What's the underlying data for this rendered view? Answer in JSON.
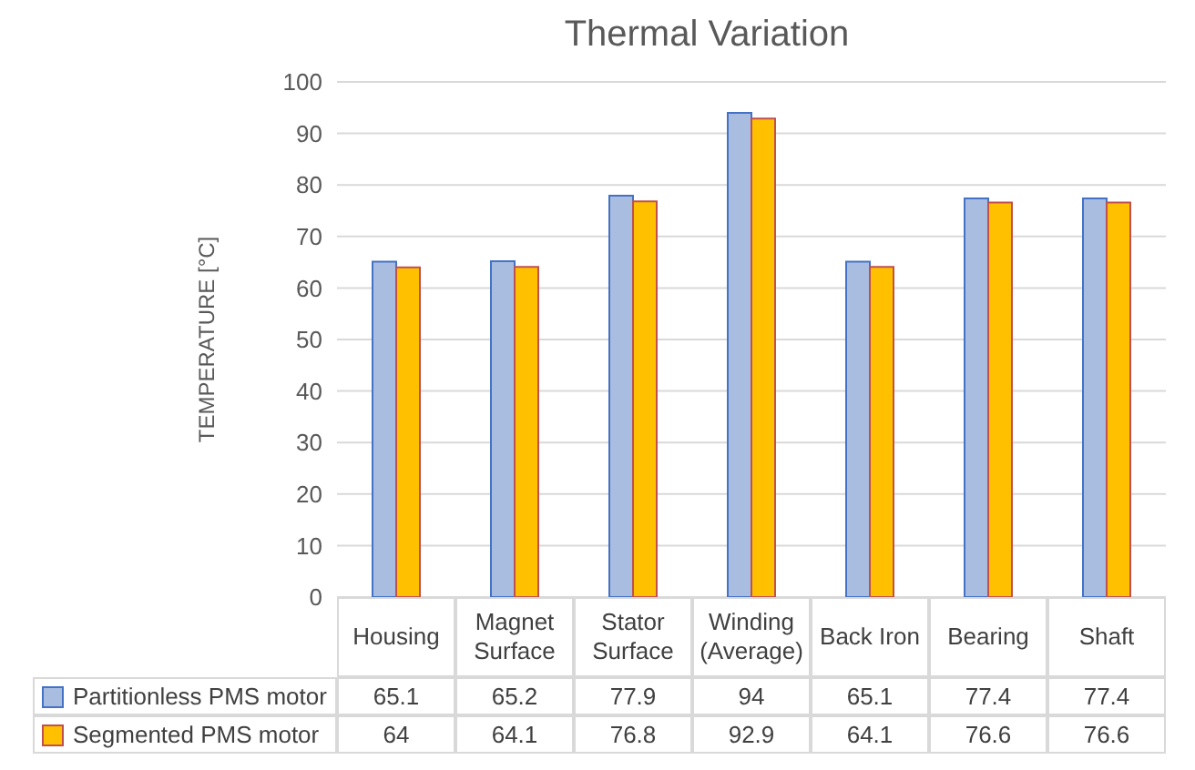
{
  "chart_data": {
    "type": "bar",
    "title": "Thermal Variation",
    "ylabel": "TEMPERATURE [°C]",
    "categories": [
      "Housing",
      "Magnet Surface",
      "Stator Surface",
      "Winding (Average)",
      "Back Iron",
      "Bearing",
      "Shaft"
    ],
    "series": [
      {
        "name": "Partitionless PMS motor",
        "color": "#a9bde0",
        "values": [
          65.1,
          65.2,
          77.9,
          94,
          65.1,
          77.4,
          77.4
        ]
      },
      {
        "name": "Segmented PMS motor",
        "color": "#ffc000",
        "values": [
          64,
          64.1,
          76.8,
          92.9,
          64.1,
          76.6,
          76.6
        ]
      }
    ],
    "ylim": [
      0,
      100
    ],
    "yticks": [
      0,
      10,
      20,
      30,
      40,
      50,
      60,
      70,
      80,
      90,
      100
    ],
    "grid": "y",
    "legend": "bottom",
    "data_labels": true
  }
}
